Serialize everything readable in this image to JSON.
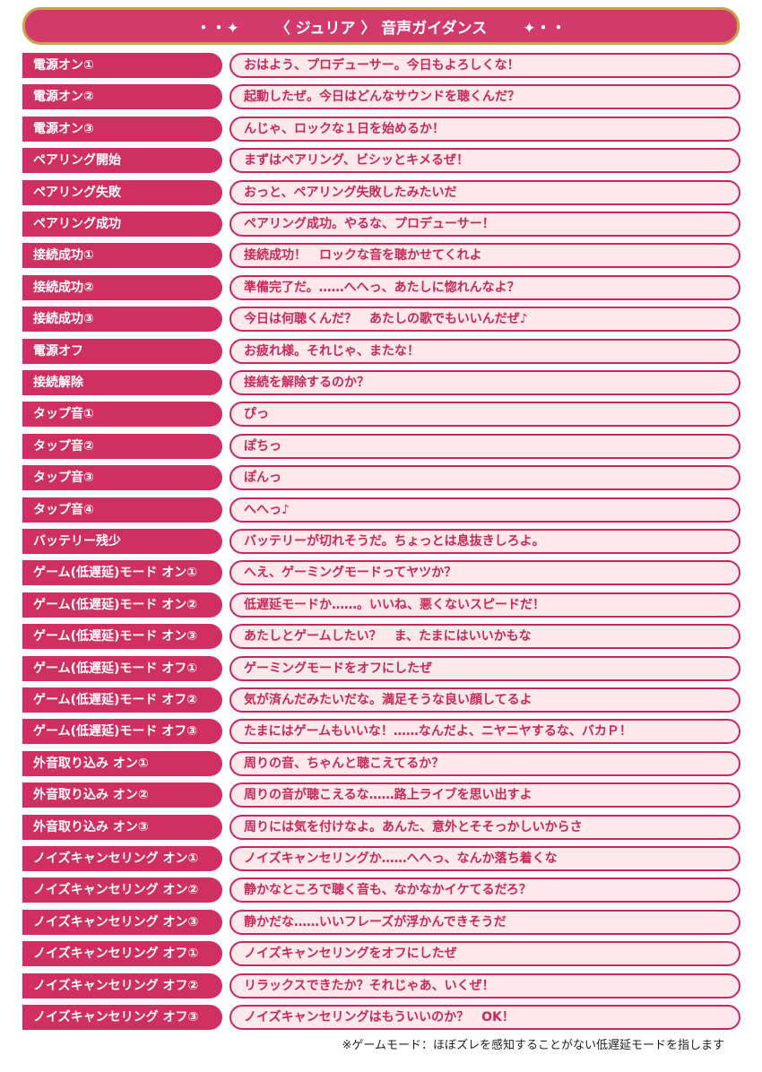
{
  "header": {
    "title": "〈 ジュリア 〉 音声ガイダンス"
  },
  "rows": [
    {
      "label": "電源オン①",
      "text": "おはよう、プロデューサー。今日もよろしくな！"
    },
    {
      "label": "電源オン②",
      "text": "起動したぜ。今日はどんなサウンドを聴くんだ？"
    },
    {
      "label": "電源オン③",
      "text": "んじゃ、ロックな１日を始めるか！"
    },
    {
      "label": "ペアリング開始",
      "text": "まずはペアリング、ビシッとキメるぜ！"
    },
    {
      "label": "ペアリング失敗",
      "text": "おっと、ペアリング失敗したみたいだ"
    },
    {
      "label": "ペアリング成功",
      "text": "ペアリング成功。やるな、プロデューサー！"
    },
    {
      "label": "接続成功①",
      "text": "接続成功！　ロックな音を聴かせてくれよ"
    },
    {
      "label": "接続成功②",
      "text": "準備完了だ。……へへっ、あたしに惚れんなよ？"
    },
    {
      "label": "接続成功③",
      "text": "今日は何聴くんだ？　あたしの歌でもいいんだぜ♪"
    },
    {
      "label": "電源オフ",
      "text": "お疲れ様。それじゃ、またな！"
    },
    {
      "label": "接続解除",
      "text": "接続を解除するのか？"
    },
    {
      "label": "タップ音①",
      "text": "ぴっ"
    },
    {
      "label": "タップ音②",
      "text": "ぽちっ"
    },
    {
      "label": "タップ音③",
      "text": "ぽんっ"
    },
    {
      "label": "タップ音④",
      "text": "へへっ♪"
    },
    {
      "label": "バッテリー残少",
      "text": "バッテリーが切れそうだ。ちょっとは息抜きしろよ。"
    },
    {
      "label": "ゲーム(低遅延)モード オン①",
      "text": "へえ、ゲーミングモードってヤツか？"
    },
    {
      "label": "ゲーム(低遅延)モード オン②",
      "text": "低遅延モードか……。いいね、悪くないスピードだ！"
    },
    {
      "label": "ゲーム(低遅延)モード オン③",
      "text": "あたしとゲームしたい？　ま、たまにはいいかもな"
    },
    {
      "label": "ゲーム(低遅延)モード オフ①",
      "text": "ゲーミングモードをオフにしたぜ"
    },
    {
      "label": "ゲーム(低遅延)モード オフ②",
      "text": "気が済んだみたいだな。満足そうな良い顔してるよ"
    },
    {
      "label": "ゲーム(低遅延)モード オフ③",
      "text": "たまにはゲームもいいな！……なんだよ、ニヤニヤするな、バカＰ！"
    },
    {
      "label": "外音取り込み オン①",
      "text": "周りの音、ちゃんと聴こえてるか？"
    },
    {
      "label": "外音取り込み オン②",
      "text": "周りの音が聴こえるな……路上ライブを思い出すよ"
    },
    {
      "label": "外音取り込み オン③",
      "text": "周りには気を付けなよ。あんた、意外とそそっかしいからさ"
    },
    {
      "label": "ノイズキャンセリング オン①",
      "text": "ノイズキャンセリングか……へへっ、なんか落ち着くな"
    },
    {
      "label": "ノイズキャンセリング オン②",
      "text": "静かなところで聴く音も、なかなかイケてるだろ？"
    },
    {
      "label": "ノイズキャンセリング オン③",
      "text": "静かだな……いいフレーズが浮かんできそうだ"
    },
    {
      "label": "ノイズキャンセリング オフ①",
      "text": "ノイズキャンセリングをオフにしたぜ"
    },
    {
      "label": "ノイズキャンセリング オフ②",
      "text": "リラックスできたか？それじゃあ、いくぜ！"
    },
    {
      "label": "ノイズキャンセリング オフ③",
      "text": "ノイズキャンセリングはもういいのか？　OK！"
    }
  ],
  "footnote": "※ゲームモード：ほぼズレを感知することがない低遅延モードを指します"
}
